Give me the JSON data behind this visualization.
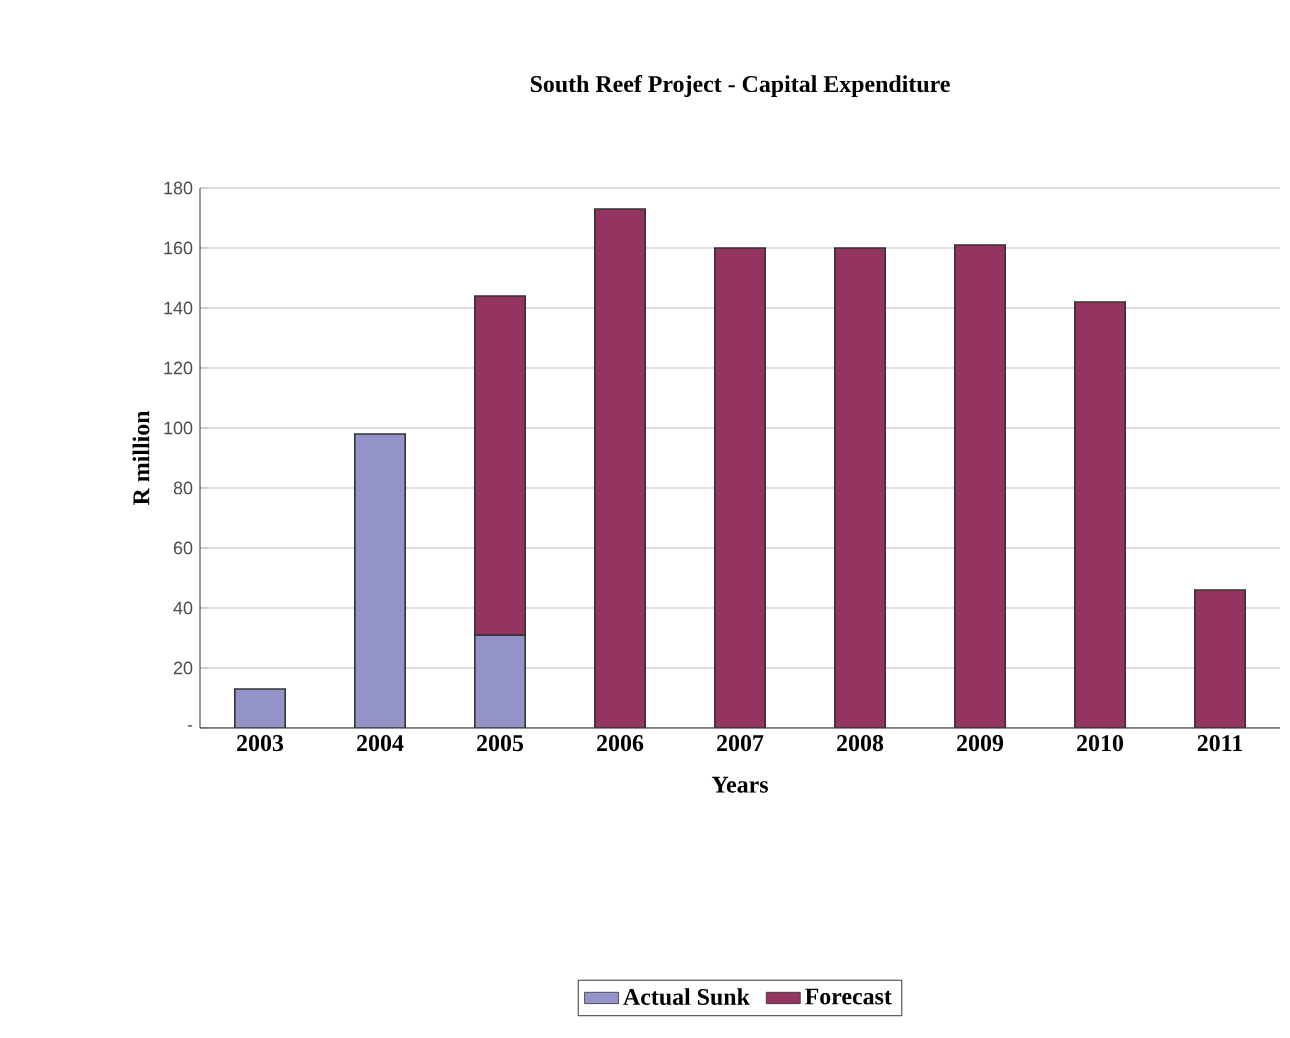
{
  "chart_data": {
    "type": "bar",
    "title": "South Reef Project - Capital Expenditure",
    "xlabel": "Years",
    "ylabel": "R million",
    "categories": [
      "2003",
      "2004",
      "2005",
      "2006",
      "2007",
      "2008",
      "2009",
      "2010",
      "2011"
    ],
    "stacked": true,
    "series": [
      {
        "name": "Actual Sunk",
        "color": "#9493c8",
        "values": [
          13,
          98,
          31,
          null,
          null,
          null,
          null,
          null,
          null
        ]
      },
      {
        "name": "Forecast",
        "color": "#943460",
        "values": [
          null,
          null,
          113,
          173,
          160,
          160,
          161,
          142,
          46
        ]
      }
    ],
    "ylim": [
      0,
      180
    ],
    "yticks": [
      {
        "value": 0,
        "label": "-"
      },
      20,
      40,
      60,
      80,
      100,
      120,
      140,
      160,
      180
    ],
    "grid": "y",
    "legend": "bottom"
  }
}
